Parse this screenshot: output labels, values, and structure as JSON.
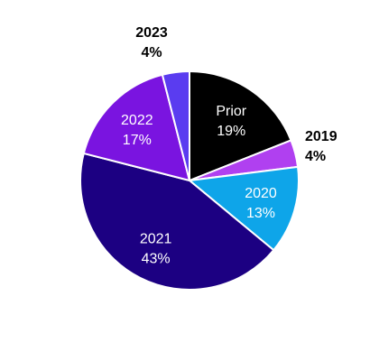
{
  "chart_data": {
    "type": "pie",
    "slices": [
      {
        "name": "Prior",
        "value": 19,
        "pct_label": "19%",
        "color": "#000000",
        "label_pos": "inside"
      },
      {
        "name": "2019",
        "value": 4,
        "pct_label": "4%",
        "color": "#B040F0",
        "label_pos": "outside"
      },
      {
        "name": "2020",
        "value": 13,
        "pct_label": "13%",
        "color": "#0EA5E9",
        "label_pos": "inside"
      },
      {
        "name": "2021",
        "value": 43,
        "pct_label": "43%",
        "color": "#1C0082",
        "label_pos": "inside"
      },
      {
        "name": "2022",
        "value": 17,
        "pct_label": "17%",
        "color": "#7A14E0",
        "label_pos": "inside"
      },
      {
        "name": "2023",
        "value": 4,
        "pct_label": "4%",
        "color": "#5A3CF0",
        "label_pos": "outside"
      }
    ],
    "start": "12 o'clock",
    "direction": "clockwise",
    "legend": "none"
  }
}
